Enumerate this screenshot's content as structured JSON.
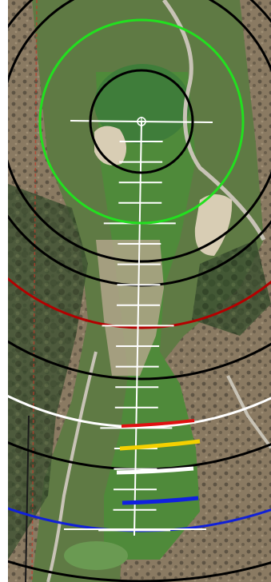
{
  "map": {
    "view": "satellite",
    "feature": "golf hole"
  },
  "overlay": {
    "pin_marker": "crosshair-icon",
    "colors": {
      "target_circle": "#22e01f",
      "inner_circle": "#000000",
      "distance_arc_red": "#b40000",
      "distance_arc_black": "#000000",
      "distance_arc_white": "#ffffff",
      "distance_arc_blue": "#1020d8",
      "tee_red": "#e01010",
      "tee_yellow": "#f5d000",
      "tee_white": "#ffffff",
      "tee_blue": "#1020e0",
      "yardage_line": "#ffffff"
    },
    "tee_markers": [
      "red",
      "yellow",
      "white",
      "blue"
    ]
  }
}
